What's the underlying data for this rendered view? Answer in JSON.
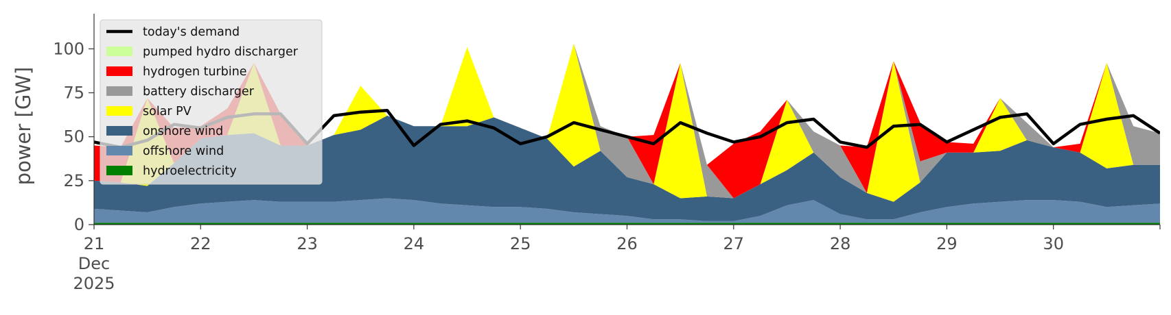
{
  "chart_data": {
    "type": "area",
    "ylabel": "power [GW]",
    "xlabel": "",
    "ylim": [
      0,
      120
    ],
    "yticks": [
      0,
      25,
      50,
      75,
      100
    ],
    "x_start_day": 21,
    "x_end_day": 31,
    "xtick_labels": [
      "21",
      "22",
      "23",
      "24",
      "25",
      "26",
      "27",
      "28",
      "29",
      "30"
    ],
    "x_month_label": "Dec",
    "x_year_label": "2025",
    "grid": false,
    "legend_position": "upper-left",
    "x": [
      21.0,
      21.25,
      21.5,
      21.75,
      22.0,
      22.25,
      22.5,
      22.75,
      23.0,
      23.25,
      23.5,
      23.75,
      24.0,
      24.25,
      24.5,
      24.75,
      25.0,
      25.25,
      25.5,
      25.75,
      26.0,
      26.25,
      26.5,
      26.75,
      27.0,
      27.25,
      27.5,
      27.75,
      28.0,
      28.25,
      28.5,
      28.75,
      29.0,
      29.25,
      29.5,
      29.75,
      30.0,
      30.25,
      30.5,
      30.75,
      31.0
    ],
    "series": [
      {
        "name": "hydroelectricity",
        "color": "#008000",
        "values": [
          1,
          1,
          1,
          1,
          1,
          1,
          1,
          1,
          1,
          1,
          1,
          1,
          1,
          1,
          1,
          1,
          1,
          1,
          1,
          1,
          1,
          1,
          1,
          1,
          1,
          1,
          1,
          1,
          1,
          1,
          1,
          1,
          1,
          1,
          1,
          1,
          1,
          1,
          1,
          1,
          1
        ]
      },
      {
        "name": "offshore wind",
        "color": "#6388ae",
        "values": [
          8,
          7,
          6,
          9,
          11,
          12,
          13,
          12,
          12,
          12,
          13,
          14,
          13,
          11,
          10,
          9,
          9,
          8,
          6,
          5,
          4,
          2,
          2,
          1,
          1,
          4,
          10,
          13,
          5,
          2,
          2,
          6,
          9,
          11,
          12,
          13,
          13,
          12,
          9,
          10,
          11
        ]
      },
      {
        "name": "onshore wind",
        "color": "#3b6182",
        "values": [
          16,
          16,
          15,
          25,
          37,
          38,
          38,
          32,
          32,
          38,
          40,
          47,
          42,
          44,
          45,
          51,
          45,
          40,
          26,
          36,
          22,
          20,
          12,
          14,
          13,
          18,
          20,
          27,
          21,
          15,
          10,
          17,
          31,
          29,
          29,
          34,
          30,
          28,
          22,
          23,
          22
        ]
      },
      {
        "name": "solar PV",
        "color": "#ffff00",
        "values": [
          0,
          0,
          50,
          0,
          0,
          0,
          40,
          0,
          0,
          0,
          25,
          0,
          0,
          0,
          45,
          0,
          0,
          0,
          70,
          0,
          0,
          0,
          77,
          0,
          0,
          0,
          40,
          0,
          0,
          0,
          80,
          0,
          0,
          0,
          30,
          0,
          0,
          0,
          60,
          0,
          0
        ]
      },
      {
        "name": "battery discharger",
        "color": "#999999",
        "values": [
          0,
          0,
          0,
          0,
          0,
          0,
          0,
          0,
          0,
          0,
          0,
          0,
          0,
          0,
          0,
          0,
          0,
          0,
          0,
          14,
          23,
          0,
          0,
          18,
          0,
          0,
          0,
          12,
          18,
          0,
          0,
          12,
          0,
          0,
          0,
          10,
          0,
          0,
          0,
          22,
          18
        ]
      },
      {
        "name": "hydrogen turbine",
        "color": "#ff0000",
        "values": [
          20,
          20,
          0,
          20,
          7,
          15,
          0,
          18,
          0,
          0,
          0,
          0,
          0,
          0,
          0,
          0,
          0,
          0,
          0,
          0,
          0,
          28,
          0,
          0,
          31,
          30,
          0,
          0,
          0,
          26,
          0,
          22,
          6,
          5,
          0,
          0,
          0,
          5,
          0,
          0,
          0
        ]
      },
      {
        "name": "pumped hydro discharger",
        "color": "#ccff99",
        "values": [
          0,
          0,
          0,
          0,
          0,
          0,
          0,
          0,
          0,
          0,
          0,
          0,
          0,
          0,
          0,
          0,
          0,
          0,
          0,
          0,
          0,
          0,
          0,
          0,
          0,
          0,
          0,
          0,
          0,
          0,
          0,
          0,
          0,
          0,
          0,
          0,
          0,
          0,
          0,
          0,
          0
        ]
      },
      {
        "name": "today's demand",
        "color": "#000000",
        "type": "line",
        "values": [
          47,
          44,
          48,
          57,
          55,
          61,
          63,
          63,
          46,
          62,
          64,
          65,
          45,
          57,
          59,
          55,
          46,
          50,
          58,
          54,
          50,
          46,
          58,
          52,
          47,
          50,
          58,
          60,
          47,
          44,
          56,
          57,
          47,
          54,
          61,
          63,
          46,
          57,
          60,
          62,
          52
        ]
      }
    ],
    "legend": [
      "today's demand",
      "pumped hydro discharger",
      "hydrogen turbine",
      "battery discharger",
      "solar PV",
      "onshore wind",
      "offshore wind",
      "hydroelectricity"
    ]
  }
}
